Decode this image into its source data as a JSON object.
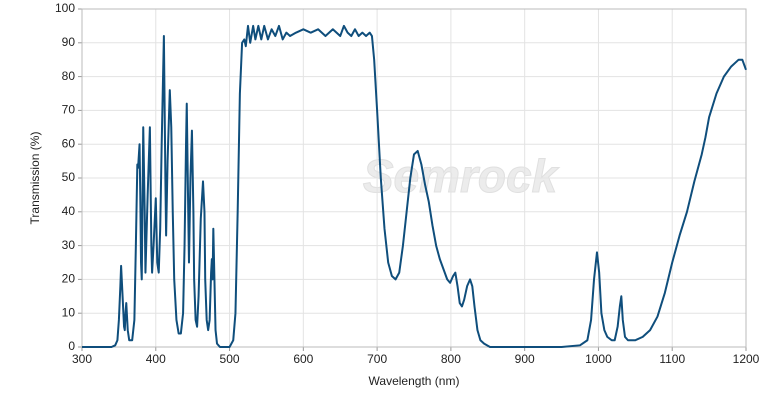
{
  "chart_data": {
    "type": "line",
    "xlabel": "Wavelength (nm)",
    "ylabel": "Transmission (%)",
    "watermark": "Semrock",
    "xlim": [
      300,
      1200
    ],
    "ylim": [
      0,
      100
    ],
    "xticks": [
      300,
      400,
      500,
      600,
      700,
      800,
      900,
      1000,
      1100,
      1200
    ],
    "yticks": [
      0,
      10,
      20,
      30,
      40,
      50,
      60,
      70,
      80,
      90,
      100
    ],
    "grid": true,
    "x": [
      300,
      340,
      345,
      348,
      350,
      352,
      353,
      355,
      357,
      358,
      359,
      360,
      362,
      364,
      368,
      371,
      373,
      375,
      376,
      378,
      379,
      380,
      381,
      383,
      385,
      386,
      389,
      392,
      394,
      395,
      397,
      400,
      402,
      404,
      406,
      408,
      411,
      413,
      414,
      416,
      419,
      421,
      423,
      425,
      428,
      431,
      434,
      437,
      439,
      441,
      442,
      444,
      445,
      447,
      449,
      451,
      452,
      454,
      456,
      458,
      461,
      464,
      466,
      467,
      469,
      471,
      473,
      475,
      476,
      477,
      478,
      479,
      481,
      483,
      487,
      500,
      505,
      508,
      511,
      514,
      517,
      520,
      522,
      525,
      528,
      532,
      535,
      539,
      543,
      547,
      552,
      557,
      562,
      567,
      572,
      577,
      582,
      590,
      600,
      610,
      620,
      630,
      640,
      650,
      655,
      660,
      665,
      670,
      675,
      680,
      685,
      690,
      693,
      696,
      700,
      705,
      710,
      715,
      720,
      725,
      730,
      735,
      740,
      745,
      750,
      755,
      760,
      765,
      770,
      775,
      780,
      785,
      790,
      795,
      799,
      803,
      806,
      809,
      812,
      815,
      818,
      822,
      826,
      829,
      832,
      836,
      840,
      845,
      853,
      950,
      975,
      985,
      990,
      994,
      998,
      1001,
      1004,
      1008,
      1012,
      1018,
      1022,
      1026,
      1029,
      1031,
      1033,
      1036,
      1040,
      1050,
      1060,
      1070,
      1080,
      1090,
      1100,
      1110,
      1120,
      1130,
      1140,
      1145,
      1150,
      1160,
      1170,
      1180,
      1190,
      1195,
      1200
    ],
    "series": [
      {
        "color": "#0f4e7c",
        "values": [
          0,
          0,
          0.5,
          2,
          8,
          18,
          24,
          15,
          6,
          5,
          10,
          13,
          5,
          2,
          2,
          8,
          30,
          54,
          53,
          60,
          45,
          25,
          20,
          65,
          40,
          22,
          45,
          65,
          30,
          22,
          30,
          44,
          25,
          22,
          35,
          60,
          92,
          50,
          33,
          55,
          76,
          65,
          40,
          20,
          8,
          4,
          4,
          10,
          30,
          60,
          72,
          40,
          25,
          50,
          64,
          40,
          20,
          8,
          6,
          15,
          38,
          49,
          40,
          20,
          8,
          5,
          8,
          22,
          26,
          20,
          35,
          25,
          5,
          1,
          0,
          0,
          2,
          10,
          40,
          75,
          90,
          91,
          89,
          95,
          90,
          95,
          91,
          95,
          91,
          95,
          91,
          94,
          92,
          95,
          91,
          93,
          92,
          93,
          94,
          93,
          94,
          92,
          94,
          92,
          95,
          93,
          92,
          94,
          92,
          93,
          92,
          93,
          92,
          85,
          70,
          50,
          35,
          25,
          21,
          20,
          22,
          30,
          40,
          50,
          57,
          58,
          54,
          48,
          43,
          36,
          30,
          26,
          23,
          20,
          19,
          21,
          22,
          18,
          13,
          12,
          14,
          18,
          20,
          18,
          12,
          5,
          2,
          1,
          0,
          0,
          0.5,
          2,
          8,
          20,
          28,
          22,
          10,
          5,
          3,
          2,
          2,
          6,
          12,
          15,
          8,
          3,
          2,
          2,
          3,
          5,
          9,
          16,
          25,
          33,
          40,
          49,
          57,
          62,
          68,
          75,
          80,
          83,
          85,
          85,
          82
        ]
      }
    ]
  }
}
